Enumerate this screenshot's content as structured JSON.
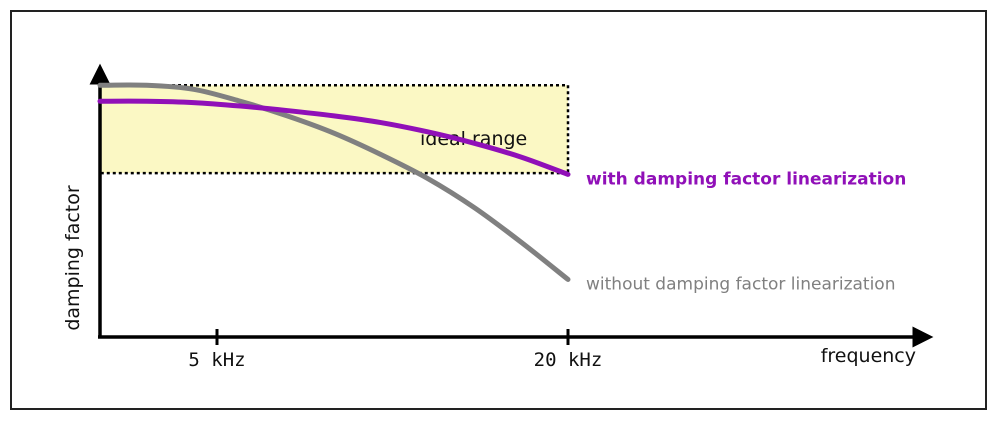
{
  "chart_data": {
    "type": "line",
    "title": "",
    "xlabel": "frequency",
    "ylabel": "damping factor",
    "x_ticks": [
      {
        "label": "5 kHz",
        "value": 5
      },
      {
        "label": "20 kHz",
        "value": 20
      }
    ],
    "xlim": [
      0,
      20
    ],
    "y_ticks": [],
    "grid": false,
    "legend": "inline labels at line ends",
    "annotation": {
      "label": "ideal range",
      "region": {
        "x": [
          0,
          20
        ],
        "y": [
          0.62,
          0.95
        ]
      },
      "fill": "#fbf8c4",
      "border": "dotted black"
    },
    "series": [
      {
        "name": "with damping factor linearization",
        "color": "#9010b8",
        "x": [
          0,
          2,
          4,
          6,
          8,
          10,
          12,
          14,
          16,
          18,
          20
        ],
        "y": [
          0.89,
          0.89,
          0.885,
          0.872,
          0.855,
          0.835,
          0.81,
          0.775,
          0.732,
          0.68,
          0.615
        ]
      },
      {
        "name": "without damping factor linearization",
        "color": "#808080",
        "x": [
          0,
          2,
          4,
          6,
          8,
          10,
          12,
          14,
          16,
          18,
          20
        ],
        "y": [
          0.95,
          0.95,
          0.935,
          0.89,
          0.835,
          0.77,
          0.69,
          0.6,
          0.49,
          0.36,
          0.22
        ]
      }
    ]
  }
}
